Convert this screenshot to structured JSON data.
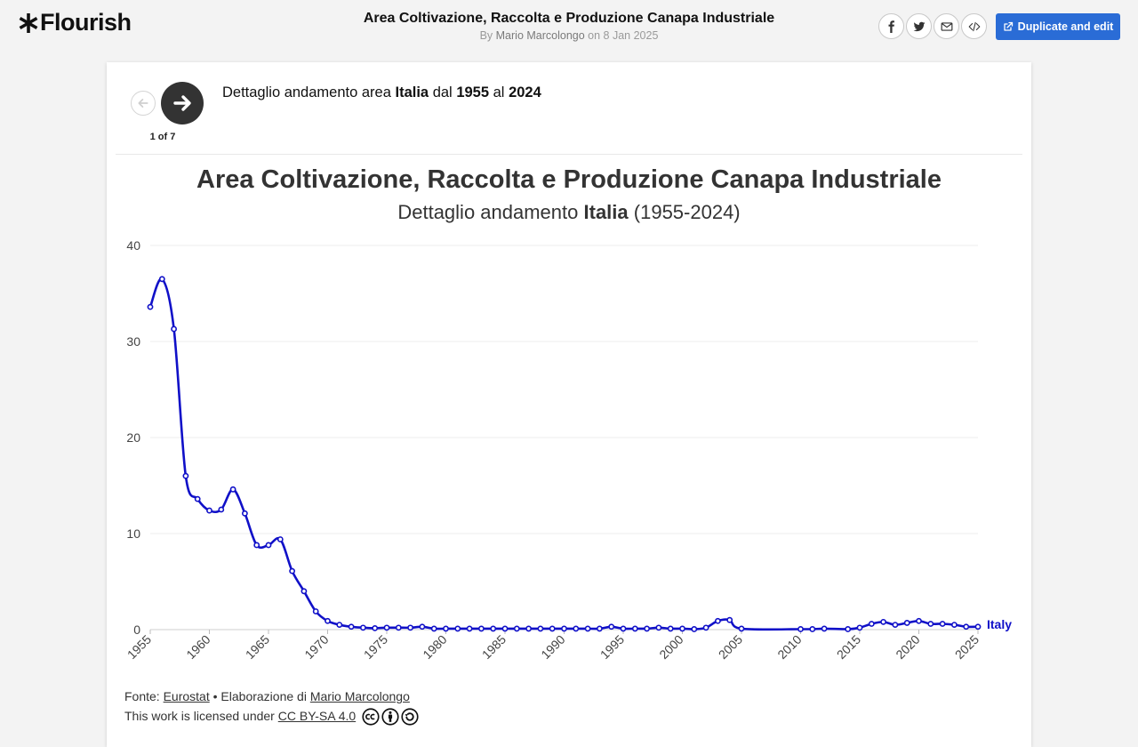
{
  "header": {
    "logo_text": "Flourish",
    "title": "Area Coltivazione, Raccolta e Produzione Canapa Industriale",
    "by_label": "By",
    "author": "Mario Marcolongo",
    "date_text": "on 8 Jan 2025",
    "share_icons": [
      "facebook-icon",
      "twitter-icon",
      "email-icon",
      "embed-icon"
    ],
    "duplicate_label": "Duplicate and edit",
    "accent_color": "#2a6cd6"
  },
  "story": {
    "counter": "1 of 7",
    "caption_pre": "Dettaglio andamento area",
    "caption_country": "Italia",
    "caption_mid": "dal",
    "caption_from": "1955",
    "caption_to_word": "al",
    "caption_to": "2024"
  },
  "chart_data": {
    "type": "line",
    "title": "Area Coltivazione, Raccolta e Produzione Canapa Industriale",
    "subtitle_pre": "Dettaglio andamento",
    "subtitle_country": "Italia",
    "subtitle_range": "(1955-2024)",
    "xlabel": "",
    "ylabel": "",
    "xlim": [
      1955,
      2025
    ],
    "ylim": [
      0,
      40
    ],
    "x_ticks": [
      1955,
      1960,
      1965,
      1970,
      1975,
      1980,
      1985,
      1990,
      1995,
      2000,
      2005,
      2010,
      2015,
      2020,
      2025
    ],
    "y_ticks": [
      0,
      10,
      20,
      30,
      40
    ],
    "grid": true,
    "series": [
      {
        "name": "Italy",
        "color": "#1010c8",
        "points": [
          [
            1955,
            33.6
          ],
          [
            1956,
            36.5
          ],
          [
            1957,
            31.3
          ],
          [
            1958,
            16.0
          ],
          [
            1959,
            13.6
          ],
          [
            1960,
            12.4
          ],
          [
            1961,
            12.5
          ],
          [
            1962,
            14.6
          ],
          [
            1963,
            12.1
          ],
          [
            1964,
            8.8
          ],
          [
            1965,
            8.8
          ],
          [
            1966,
            9.4
          ],
          [
            1967,
            6.1
          ],
          [
            1968,
            4.0
          ],
          [
            1969,
            1.9
          ],
          [
            1970,
            0.9
          ],
          [
            1971,
            0.5
          ],
          [
            1972,
            0.3
          ],
          [
            1973,
            0.2
          ],
          [
            1974,
            0.15
          ],
          [
            1975,
            0.2
          ],
          [
            1976,
            0.2
          ],
          [
            1977,
            0.2
          ],
          [
            1978,
            0.3
          ],
          [
            1979,
            0.1
          ],
          [
            1980,
            0.1
          ],
          [
            1981,
            0.1
          ],
          [
            1982,
            0.1
          ],
          [
            1983,
            0.1
          ],
          [
            1984,
            0.1
          ],
          [
            1985,
            0.1
          ],
          [
            1986,
            0.1
          ],
          [
            1987,
            0.1
          ],
          [
            1988,
            0.1
          ],
          [
            1989,
            0.1
          ],
          [
            1990,
            0.1
          ],
          [
            1991,
            0.1
          ],
          [
            1992,
            0.1
          ],
          [
            1993,
            0.1
          ],
          [
            1994,
            0.3
          ],
          [
            1995,
            0.1
          ],
          [
            1996,
            0.1
          ],
          [
            1997,
            0.1
          ],
          [
            1998,
            0.2
          ],
          [
            1999,
            0.1
          ],
          [
            2000,
            0.1
          ],
          [
            2001,
            0.05
          ],
          [
            2002,
            0.2
          ],
          [
            2003,
            0.9
          ],
          [
            2004,
            1.0
          ],
          [
            2005,
            0.1
          ],
          [
            2010,
            0.05
          ],
          [
            2011,
            0.05
          ],
          [
            2012,
            0.1
          ],
          [
            2014,
            0.05
          ],
          [
            2015,
            0.2
          ],
          [
            2016,
            0.6
          ],
          [
            2017,
            0.8
          ],
          [
            2018,
            0.5
          ],
          [
            2019,
            0.7
          ],
          [
            2020,
            0.9
          ],
          [
            2021,
            0.6
          ],
          [
            2022,
            0.6
          ],
          [
            2023,
            0.5
          ],
          [
            2024,
            0.3
          ],
          [
            2025,
            0.3
          ]
        ]
      }
    ]
  },
  "footer": {
    "source_label": "Fonte:",
    "source_name": "Eurostat",
    "separator": "•",
    "elaboration_label": "Elaborazione di",
    "elaboration_author": "Mario Marcolongo",
    "license_text": "This work is licensed under",
    "license_name": "CC BY-SA 4.0",
    "license_icons": [
      "cc-icon",
      "by-icon",
      "sa-icon"
    ]
  }
}
